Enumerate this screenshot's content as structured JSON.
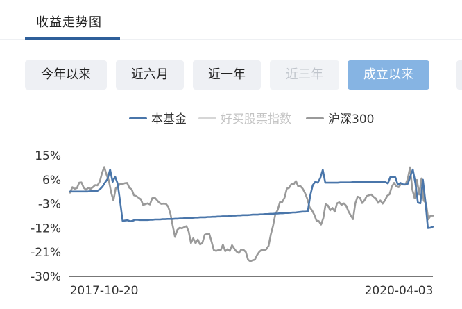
{
  "tab": {
    "title": "收益走势图"
  },
  "range_buttons": [
    {
      "label": "今年以来",
      "state": "normal"
    },
    {
      "label": "近六月",
      "state": "normal"
    },
    {
      "label": "近一年",
      "state": "normal"
    },
    {
      "label": "近三年",
      "state": "disabled"
    },
    {
      "label": "成立以来",
      "state": "active"
    }
  ],
  "colors": {
    "fund": "#4a76aa",
    "index": "#d6d6d6",
    "hs300": "#9a9a9a",
    "active_button": "#86b4e3",
    "axis": "#4a4a4a"
  },
  "chart_data": {
    "type": "line",
    "ylim": [
      -30,
      15
    ],
    "y_ticks": [
      "15%",
      "6%",
      "-3%",
      "-12%",
      "-21%",
      "-30%"
    ],
    "y_tick_values": [
      15,
      6,
      -3,
      -12,
      -21,
      -30
    ],
    "x_start_label": "2017-10-20",
    "x_end_label": "2020-04-03",
    "series": [
      {
        "name": "本基金",
        "color": "#4a76aa",
        "values": [
          1.6,
          1.6,
          1.6,
          1.6,
          1.6,
          1.6,
          1.6,
          1.6,
          1.7,
          1.8,
          1.8,
          1.9,
          2.5,
          3.5,
          5.0,
          6.3,
          9.8,
          5.2,
          7.2,
          4.6,
          -2.0,
          -9.3,
          -9.2,
          -9.1,
          -9.5,
          -9.3,
          -8.9,
          -8.9,
          -9.0,
          -9.0,
          -9.0,
          -9.0,
          -8.9,
          -8.9,
          -8.8,
          -8.8,
          -8.8,
          -8.7,
          -8.7,
          -8.6,
          -8.6,
          -8.6,
          -8.5,
          -8.5,
          -8.4,
          -8.4,
          -8.3,
          -8.3,
          -8.2,
          -8.2,
          -8.1,
          -8.1,
          -8.0,
          -8.0,
          -8.0,
          -7.9,
          -7.9,
          -7.8,
          -7.8,
          -7.7,
          -7.7,
          -7.6,
          -7.6,
          -7.6,
          -7.5,
          -7.4,
          -7.4,
          -7.3,
          -7.3,
          -7.2,
          -7.2,
          -7.2,
          -7.1,
          -7.0,
          -7.0,
          -7.0,
          -6.9,
          -6.9,
          -6.8,
          -6.8,
          -6.7,
          -6.7,
          -6.6,
          -6.6,
          -6.5,
          -6.5,
          -6.4,
          -6.4,
          -6.3,
          -6.2,
          -6.2,
          -6.1,
          -6.0,
          -5.9,
          -5.9,
          -5.8,
          0.2,
          4.0,
          5.2,
          4.9,
          6.6,
          9.7,
          4.9,
          4.9,
          4.9,
          4.9,
          4.9,
          4.9,
          5.0,
          5.0,
          5.0,
          5.0,
          5.0,
          5.1,
          5.1,
          5.1,
          5.1,
          5.2,
          5.2,
          5.2,
          5.2,
          5.2,
          5.2,
          5.2,
          5.2,
          5.1,
          5.1,
          4.6,
          7.0,
          7.0,
          6.9,
          4.1,
          4.8,
          4.3,
          4.2,
          4.5,
          7.3,
          9.8,
          4.6,
          -2.5,
          -2.8,
          6.0,
          -2.0,
          -12.0,
          -11.9,
          -11.5
        ]
      },
      {
        "name": "好买股票指数",
        "color": "#d6d6d6",
        "visible": false,
        "values": []
      },
      {
        "name": "沪深300",
        "color": "#9a9a9a",
        "values": [
          1.2,
          3.2,
          2.6,
          2.9,
          4.9,
          5.0,
          3.0,
          2.3,
          3.0,
          2.6,
          3.2,
          4.0,
          3.9,
          5.3,
          8.5,
          10.7,
          7.8,
          5.7,
          1.3,
          -1.7,
          2.8,
          3.6,
          4.5,
          4.4,
          4.7,
          4.8,
          3.0,
          2.4,
          0.2,
          -0.1,
          -0.7,
          -1.3,
          -3.4,
          -3.1,
          -2.8,
          -3.2,
          -0.9,
          -0.6,
          -1.5,
          -2.5,
          -3.0,
          -2.9,
          -3.0,
          -4.0,
          -6.7,
          -11.2,
          -15.3,
          -12.7,
          -11.9,
          -12.1,
          -11.7,
          -11.3,
          -13.3,
          -17.6,
          -15.8,
          -17.7,
          -16.3,
          -18.1,
          -17.5,
          -14.5,
          -14.2,
          -14.1,
          -17.0,
          -20.2,
          -20.5,
          -20.2,
          -20.3,
          -18.2,
          -20.6,
          -19.9,
          -20.5,
          -18.4,
          -19.7,
          -20.8,
          -21.3,
          -20.0,
          -20.1,
          -20.9,
          -23.8,
          -24.4,
          -24.0,
          -23.8,
          -22.0,
          -20.8,
          -20.1,
          -20.3,
          -19.9,
          -18.6,
          -14.3,
          -11.1,
          -6.8,
          -5.3,
          -2.3,
          -2.3,
          -0.7,
          2.7,
          3.0,
          4.4,
          4.3,
          5.5,
          3.5,
          3.6,
          2.6,
          1.0,
          -1.2,
          -4.3,
          -5.4,
          -7.0,
          -9.2,
          -9.4,
          -10.7,
          -8.3,
          -3.1,
          -3.6,
          -5.4,
          -4.5,
          -5.9,
          -2.8,
          -2.4,
          -3.4,
          -2.8,
          -3.7,
          -5.8,
          -7.3,
          -8.7,
          -2.8,
          -0.3,
          -0.6,
          -2.7,
          -1.7,
          -0.1,
          0.2,
          0.5,
          -0.4,
          -1.0,
          -2.6,
          -1.7,
          -2.9,
          -1.7,
          0.0,
          0.6,
          3.4,
          4.8,
          3.5,
          3.2,
          4.4,
          4.2,
          4.2,
          6.3,
          10.6,
          2.3,
          -0.9,
          5.9,
          0.5,
          6.5,
          -1.8,
          -2.7,
          -8.8,
          -7.4,
          -7.4
        ]
      }
    ],
    "legend_placement": "top-center",
    "grid": false
  }
}
